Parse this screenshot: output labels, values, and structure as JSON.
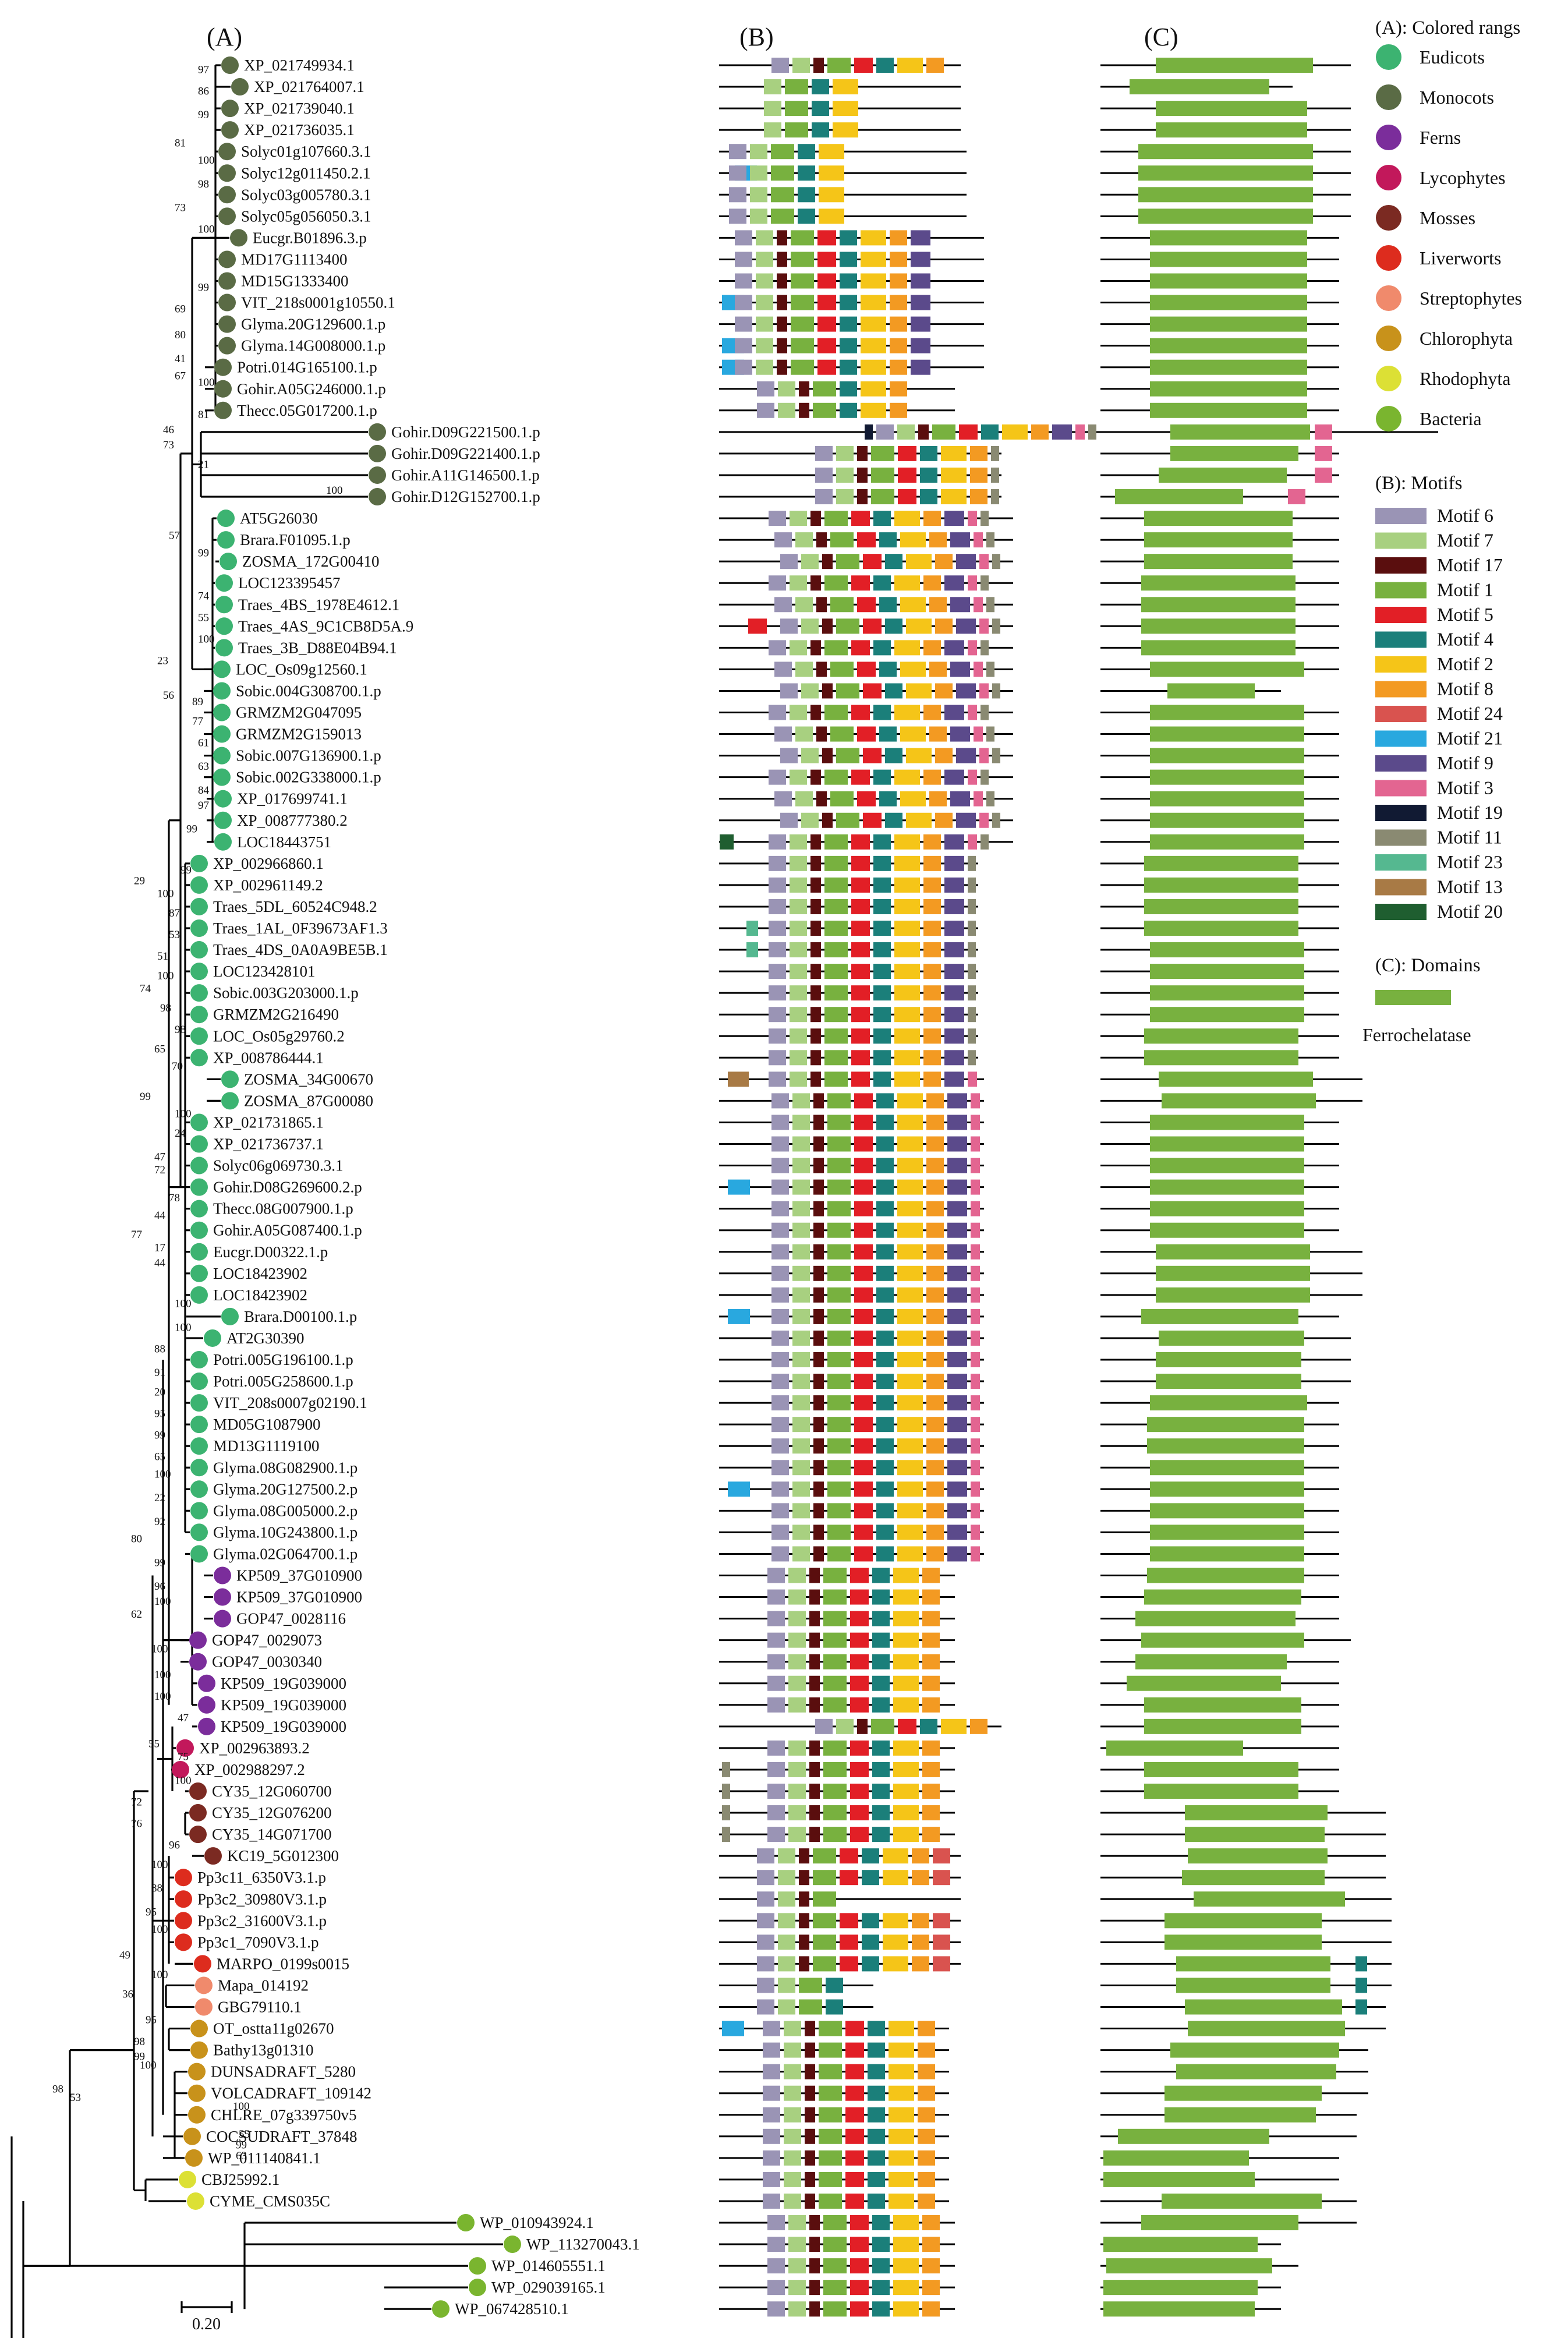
{
  "panels": {
    "a": "(A)",
    "b": "(B)",
    "c": "(C)"
  },
  "legend": {
    "groups_title": "(A): Colored rangs",
    "groups": [
      {
        "name": "Eudicots",
        "color": "#3cb371"
      },
      {
        "name": "Monocots",
        "color": "#5a6b45"
      },
      {
        "name": "Ferns",
        "color": "#7b2d9b"
      },
      {
        "name": "Lycophytes",
        "color": "#c2185b"
      },
      {
        "name": "Mosses",
        "color": "#7b2a22"
      },
      {
        "name": "Liverworts",
        "color": "#dd2c1e"
      },
      {
        "name": "Streptophytes",
        "color": "#f08a6c"
      },
      {
        "name": "Chlorophyta",
        "color": "#c8921b"
      },
      {
        "name": "Rhodophyta",
        "color": "#dce035"
      },
      {
        "name": "Bacteria",
        "color": "#7ab52f"
      }
    ],
    "motifs_title": "(B): Motifs",
    "motifs": [
      {
        "name": "Motif 6",
        "color": "#9a94b5"
      },
      {
        "name": "Motif 7",
        "color": "#a8d080"
      },
      {
        "name": "Motif 17",
        "color": "#5a0e0e"
      },
      {
        "name": "Motif 1",
        "color": "#78b13f"
      },
      {
        "name": "Motif 5",
        "color": "#e21f26"
      },
      {
        "name": "Motif 4",
        "color": "#1b7f7a"
      },
      {
        "name": "Motif 2",
        "color": "#f5c518"
      },
      {
        "name": "Motif 8",
        "color": "#f39a22"
      },
      {
        "name": "Motif 24",
        "color": "#d9534f"
      },
      {
        "name": "Motif 21",
        "color": "#29a8df"
      },
      {
        "name": "Motif 9",
        "color": "#5b4a8b"
      },
      {
        "name": "Motif 3",
        "color": "#e36591"
      },
      {
        "name": "Motif 19",
        "color": "#111a33"
      },
      {
        "name": "Motif 11",
        "color": "#8a8a72"
      },
      {
        "name": "Motif 23",
        "color": "#55b890"
      },
      {
        "name": "Motif 13",
        "color": "#a87a45"
      },
      {
        "name": "Motif 20",
        "color": "#1f5e30"
      }
    ],
    "domains_title": "(C): Domains",
    "domain": {
      "name": "Ferrochelatase",
      "color": "#78b13f"
    }
  },
  "scale_bar": "0.20",
  "taxa": [
    {
      "name": "XP_021749934.1",
      "group": 1
    },
    {
      "name": "XP_021764007.1",
      "group": 1
    },
    {
      "name": "XP_021739040.1",
      "group": 1
    },
    {
      "name": "XP_021736035.1",
      "group": 1
    },
    {
      "name": "Solyc01g107660.3.1",
      "group": 1
    },
    {
      "name": "Solyc12g011450.2.1",
      "group": 1
    },
    {
      "name": "Solyc03g005780.3.1",
      "group": 1
    },
    {
      "name": "Solyc05g056050.3.1",
      "group": 1
    },
    {
      "name": "Eucgr.B01896.3.p",
      "group": 1
    },
    {
      "name": "MD17G1113400",
      "group": 1
    },
    {
      "name": "MD15G1333400",
      "group": 1
    },
    {
      "name": "VIT_218s0001g10550.1",
      "group": 1
    },
    {
      "name": "Glyma.20G129600.1.p",
      "group": 1
    },
    {
      "name": "Glyma.14G008000.1.p",
      "group": 1
    },
    {
      "name": "Potri.014G165100.1.p",
      "group": 1
    },
    {
      "name": "Gohir.A05G246000.1.p",
      "group": 1
    },
    {
      "name": "Thecc.05G017200.1.p",
      "group": 1
    },
    {
      "name": "Gohir.D09G221500.1.p",
      "group": 1
    },
    {
      "name": "Gohir.D09G221400.1.p",
      "group": 1
    },
    {
      "name": "Gohir.A11G146500.1.p",
      "group": 1
    },
    {
      "name": "Gohir.D12G152700.1.p",
      "group": 1
    },
    {
      "name": "AT5G26030",
      "group": 0
    },
    {
      "name": "Brara.F01095.1.p",
      "group": 0
    },
    {
      "name": "ZOSMA_172G00410",
      "group": 0
    },
    {
      "name": "LOC123395457",
      "group": 0
    },
    {
      "name": "Traes_4BS_1978E4612.1",
      "group": 0
    },
    {
      "name": "Traes_4AS_9C1CB8D5A.9",
      "group": 0
    },
    {
      "name": "Traes_3B_D88E04B94.1",
      "group": 0
    },
    {
      "name": "LOC_Os09g12560.1",
      "group": 0
    },
    {
      "name": "Sobic.004G308700.1.p",
      "group": 0
    },
    {
      "name": "GRMZM2G047095",
      "group": 0
    },
    {
      "name": "GRMZM2G159013",
      "group": 0
    },
    {
      "name": "Sobic.007G136900.1.p",
      "group": 0
    },
    {
      "name": "Sobic.002G338000.1.p",
      "group": 0
    },
    {
      "name": "XP_017699741.1",
      "group": 0
    },
    {
      "name": "XP_008777380.2",
      "group": 0
    },
    {
      "name": "LOC18443751",
      "group": 0
    },
    {
      "name": "XP_002966860.1",
      "group": 0
    },
    {
      "name": "XP_002961149.2",
      "group": 0
    },
    {
      "name": "Traes_5DL_60524C948.2",
      "group": 0
    },
    {
      "name": "Traes_1AL_0F39673AF1.3",
      "group": 0
    },
    {
      "name": "Traes_4DS_0A0A9BE5B.1",
      "group": 0
    },
    {
      "name": "LOC123428101",
      "group": 0
    },
    {
      "name": "Sobic.003G203000.1.p",
      "group": 0
    },
    {
      "name": "GRMZM2G216490",
      "group": 0
    },
    {
      "name": "LOC_Os05g29760.2",
      "group": 0
    },
    {
      "name": "XP_008786444.1",
      "group": 0
    },
    {
      "name": "ZOSMA_34G00670",
      "group": 0
    },
    {
      "name": "ZOSMA_87G00080",
      "group": 0
    },
    {
      "name": "XP_021731865.1",
      "group": 0
    },
    {
      "name": "XP_021736737.1",
      "group": 0
    },
    {
      "name": "Solyc06g069730.3.1",
      "group": 0
    },
    {
      "name": "Gohir.D08G269600.2.p",
      "group": 0
    },
    {
      "name": "Thecc.08G007900.1.p",
      "group": 0
    },
    {
      "name": "Gohir.A05G087400.1.p",
      "group": 0
    },
    {
      "name": "Eucgr.D00322.1.p",
      "group": 0
    },
    {
      "name": "LOC18423902",
      "group": 0
    },
    {
      "name": "LOC18423902",
      "group": 0
    },
    {
      "name": "Brara.D00100.1.p",
      "group": 0
    },
    {
      "name": "AT2G30390",
      "group": 0
    },
    {
      "name": "Potri.005G196100.1.p",
      "group": 0
    },
    {
      "name": "Potri.005G258600.1.p",
      "group": 0
    },
    {
      "name": "VIT_208s0007g02190.1",
      "group": 0
    },
    {
      "name": "MD05G1087900",
      "group": 0
    },
    {
      "name": "MD13G1119100",
      "group": 0
    },
    {
      "name": "Glyma.08G082900.1.p",
      "group": 0
    },
    {
      "name": "Glyma.20G127500.2.p",
      "group": 0
    },
    {
      "name": "Glyma.08G005000.2.p",
      "group": 0
    },
    {
      "name": "Glyma.10G243800.1.p",
      "group": 0
    },
    {
      "name": "Glyma.02G064700.1.p",
      "group": 0
    },
    {
      "name": "KP509_37G010900",
      "group": 2
    },
    {
      "name": "KP509_37G010900",
      "group": 2
    },
    {
      "name": "GOP47_0028116",
      "group": 2
    },
    {
      "name": "GOP47_0029073",
      "group": 2
    },
    {
      "name": "GOP47_0030340",
      "group": 2
    },
    {
      "name": "KP509_19G039000",
      "group": 2
    },
    {
      "name": "KP509_19G039000",
      "group": 2
    },
    {
      "name": "KP509_19G039000",
      "group": 2
    },
    {
      "name": "XP_002963893.2",
      "group": 3
    },
    {
      "name": "XP_002988297.2",
      "group": 3
    },
    {
      "name": "CY35_12G060700",
      "group": 4
    },
    {
      "name": "CY35_12G076200",
      "group": 4
    },
    {
      "name": "CY35_14G071700",
      "group": 4
    },
    {
      "name": "KC19_5G012300",
      "group": 4
    },
    {
      "name": "Pp3c11_6350V3.1.p",
      "group": 5
    },
    {
      "name": "Pp3c2_30980V3.1.p",
      "group": 5
    },
    {
      "name": "Pp3c2_31600V3.1.p",
      "group": 5
    },
    {
      "name": "Pp3c1_7090V3.1.p",
      "group": 5
    },
    {
      "name": "MARPO_0199s0015",
      "group": 5
    },
    {
      "name": "Mapa_014192",
      "group": 6
    },
    {
      "name": "GBG79110.1",
      "group": 6
    },
    {
      "name": "OT_ostta11g02670",
      "group": 7
    },
    {
      "name": "Bathy13g01310",
      "group": 7
    },
    {
      "name": "DUNSADRAFT_5280",
      "group": 7
    },
    {
      "name": "VOLCADRAFT_109142",
      "group": 7
    },
    {
      "name": "CHLRE_07g339750v5",
      "group": 7
    },
    {
      "name": "COCSUDRAFT_37848",
      "group": 7
    },
    {
      "name": "WP_011140841.1",
      "group": 7
    },
    {
      "name": "CBJ25992.1",
      "group": 8
    },
    {
      "name": "CYME_CMS035C",
      "group": 8
    },
    {
      "name": "WP_010943924.1",
      "group": 9
    },
    {
      "name": "WP_113270043.1",
      "group": 9
    },
    {
      "name": "WP_014605551.1",
      "group": 9
    },
    {
      "name": "WP_029039165.1",
      "group": 9
    },
    {
      "name": "WP_067428510.1",
      "group": 9
    }
  ],
  "support_values": [
    {
      "label": "97"
    },
    {
      "label": "86"
    },
    {
      "label": "99"
    },
    {
      "label": "81"
    },
    {
      "label": "100"
    },
    {
      "label": "98"
    },
    {
      "label": "73"
    },
    {
      "label": "100"
    },
    {
      "label": "99"
    },
    {
      "label": "69"
    },
    {
      "label": "80"
    },
    {
      "label": "41"
    },
    {
      "label": "67"
    },
    {
      "label": "100"
    },
    {
      "label": "81"
    },
    {
      "label": "46"
    },
    {
      "label": "73"
    },
    {
      "label": "21"
    },
    {
      "label": "100"
    },
    {
      "label": "57"
    },
    {
      "label": "99"
    },
    {
      "label": "74"
    },
    {
      "label": "55"
    },
    {
      "label": "100"
    },
    {
      "label": "23"
    },
    {
      "label": "56"
    },
    {
      "label": "89"
    },
    {
      "label": "77"
    },
    {
      "label": "61"
    },
    {
      "label": "63"
    },
    {
      "label": "84"
    },
    {
      "label": "97"
    },
    {
      "label": "99"
    },
    {
      "label": "99"
    },
    {
      "label": "29"
    },
    {
      "label": "100"
    },
    {
      "label": "87"
    },
    {
      "label": "53"
    },
    {
      "label": "51"
    },
    {
      "label": "100"
    },
    {
      "label": "74"
    },
    {
      "label": "98"
    },
    {
      "label": "98"
    },
    {
      "label": "65"
    },
    {
      "label": "70"
    },
    {
      "label": "99"
    },
    {
      "label": "100"
    },
    {
      "label": "24"
    },
    {
      "label": "47"
    },
    {
      "label": "72"
    },
    {
      "label": "78"
    },
    {
      "label": "44"
    },
    {
      "label": "77"
    },
    {
      "label": "17"
    },
    {
      "label": "44"
    },
    {
      "label": "100"
    },
    {
      "label": "100"
    },
    {
      "label": "88"
    },
    {
      "label": "91"
    },
    {
      "label": "20"
    },
    {
      "label": "95"
    },
    {
      "label": "99"
    },
    {
      "label": "65"
    },
    {
      "label": "100"
    },
    {
      "label": "22"
    },
    {
      "label": "92"
    },
    {
      "label": "80"
    },
    {
      "label": "99"
    },
    {
      "label": "96"
    },
    {
      "label": "100"
    },
    {
      "label": "62"
    },
    {
      "label": "100"
    },
    {
      "label": "100"
    },
    {
      "label": "100"
    },
    {
      "label": "47"
    },
    {
      "label": "55"
    },
    {
      "label": "75"
    },
    {
      "label": "100"
    },
    {
      "label": "72"
    },
    {
      "label": "76"
    },
    {
      "label": "96"
    },
    {
      "label": "100"
    },
    {
      "label": "88"
    },
    {
      "label": "100"
    },
    {
      "label": "95"
    },
    {
      "label": "49"
    },
    {
      "label": "100"
    },
    {
      "label": "36"
    },
    {
      "label": "95"
    },
    {
      "label": "98"
    },
    {
      "label": "99"
    },
    {
      "label": "100"
    },
    {
      "label": "53"
    },
    {
      "label": "98"
    },
    {
      "label": "100"
    },
    {
      "label": "55"
    },
    {
      "label": "99"
    },
    {
      "label": "63"
    }
  ]
}
